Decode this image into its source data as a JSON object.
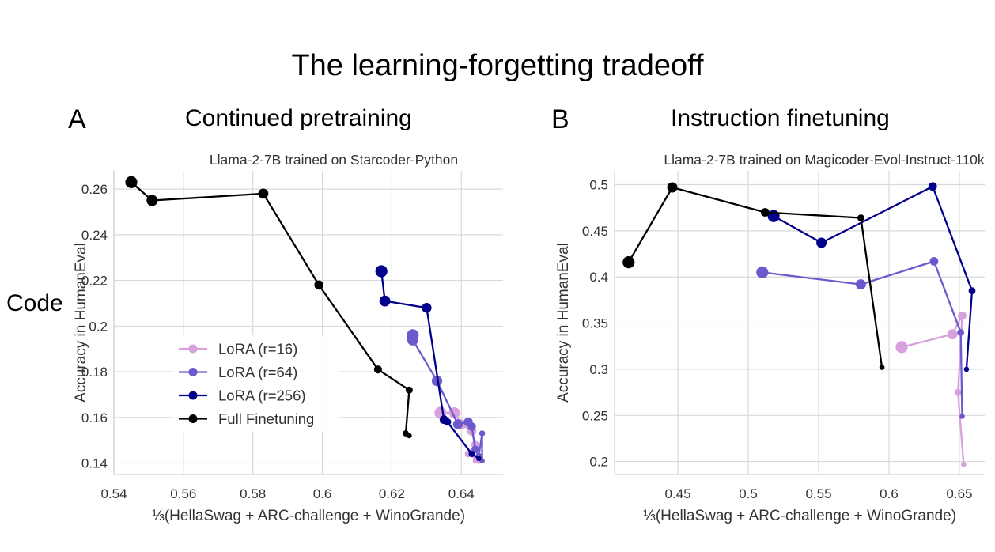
{
  "figure": {
    "title": "The learning-forgetting tradeoff",
    "row_label": "Code",
    "panel_a": {
      "letter": "A",
      "title": "Continued pretraining"
    },
    "panel_b": {
      "letter": "B",
      "title": "Instruction finetuning"
    }
  },
  "colors": {
    "lora_r16": "#d8a0dc",
    "lora_r64": "#6a5acd",
    "lora_r256": "#00008b",
    "full": "#000000",
    "grid": "#d9d9d9"
  },
  "chart_data": [
    {
      "type": "line",
      "subtitle": "Llama-2-7B trained on Starcoder-Python",
      "xlabel": "⅓(HellaSwag + ARC-challenge + WinoGrande)",
      "ylabel": "Accuracy in HumanEval",
      "xlim": [
        0.54,
        0.652
      ],
      "ylim": [
        0.135,
        0.268
      ],
      "xticks": [
        0.54,
        0.56,
        0.58,
        0.6,
        0.62,
        0.64
      ],
      "yticks": [
        0.14,
        0.16,
        0.18,
        0.2,
        0.22,
        0.24,
        0.26
      ],
      "grid": true,
      "legend": {
        "position": "lower-left",
        "entries": [
          "LoRA (r=16)",
          "LoRA (r=64)",
          "LoRA (r=256)",
          "Full Finetuning"
        ]
      },
      "series": [
        {
          "name": "LoRA (r=16)",
          "color": "#d8a0dc",
          "x": [
            0.634,
            0.638,
            0.64,
            0.643,
            0.644,
            0.642,
            0.645,
            0.644
          ],
          "y": [
            0.162,
            0.162,
            0.157,
            0.154,
            0.148,
            0.144,
            0.141,
            0.141
          ]
        },
        {
          "name": "LoRA (r=64)",
          "color": "#6a5acd",
          "x": [
            0.626,
            0.626,
            0.633,
            0.639,
            0.642,
            0.643,
            0.644,
            0.645,
            0.646,
            0.646
          ],
          "y": [
            0.196,
            0.194,
            0.176,
            0.157,
            0.158,
            0.156,
            0.146,
            0.143,
            0.153,
            0.141
          ]
        },
        {
          "name": "LoRA (r=256)",
          "color": "#00008b",
          "x": [
            0.617,
            0.618,
            0.63,
            0.635,
            0.636,
            0.643,
            0.645
          ],
          "y": [
            0.224,
            0.211,
            0.208,
            0.159,
            0.158,
            0.144,
            0.142
          ]
        },
        {
          "name": "Full Finetuning",
          "color": "#000000",
          "x": [
            0.545,
            0.551,
            0.583,
            0.599,
            0.616,
            0.625,
            0.624,
            0.625
          ],
          "y": [
            0.263,
            0.255,
            0.258,
            0.218,
            0.181,
            0.172,
            0.153,
            0.152
          ]
        }
      ]
    },
    {
      "type": "line",
      "subtitle": "Llama-2-7B trained on Magicoder-Evol-Instruct-110k",
      "xlabel": "⅓(HellaSwag + ARC-challenge + WinoGrande)",
      "ylabel": "Accuracy in HumanEval",
      "xlim": [
        0.405,
        0.668
      ],
      "ylim": [
        0.186,
        0.515
      ],
      "xticks": [
        0.45,
        0.5,
        0.55,
        0.6,
        0.65
      ],
      "yticks": [
        0.2,
        0.25,
        0.3,
        0.35,
        0.4,
        0.45,
        0.5
      ],
      "grid": true,
      "series": [
        {
          "name": "LoRA (r=16)",
          "color": "#d8a0dc",
          "x": [
            0.609,
            0.645,
            0.652,
            0.649,
            0.653
          ],
          "y": [
            0.324,
            0.338,
            0.358,
            0.275,
            0.197
          ]
        },
        {
          "name": "LoRA (r=64)",
          "color": "#6a5acd",
          "x": [
            0.51,
            0.58,
            0.632,
            0.651,
            0.652
          ],
          "y": [
            0.405,
            0.392,
            0.417,
            0.34,
            0.249
          ]
        },
        {
          "name": "LoRA (r=256)",
          "color": "#00008b",
          "x": [
            0.518,
            0.552,
            0.631,
            0.659,
            0.655
          ],
          "y": [
            0.466,
            0.437,
            0.498,
            0.385,
            0.3
          ]
        },
        {
          "name": "Full Finetuning",
          "color": "#000000",
          "x": [
            0.415,
            0.446,
            0.512,
            0.58,
            0.595
          ],
          "y": [
            0.416,
            0.497,
            0.47,
            0.464,
            0.302
          ]
        }
      ]
    }
  ]
}
